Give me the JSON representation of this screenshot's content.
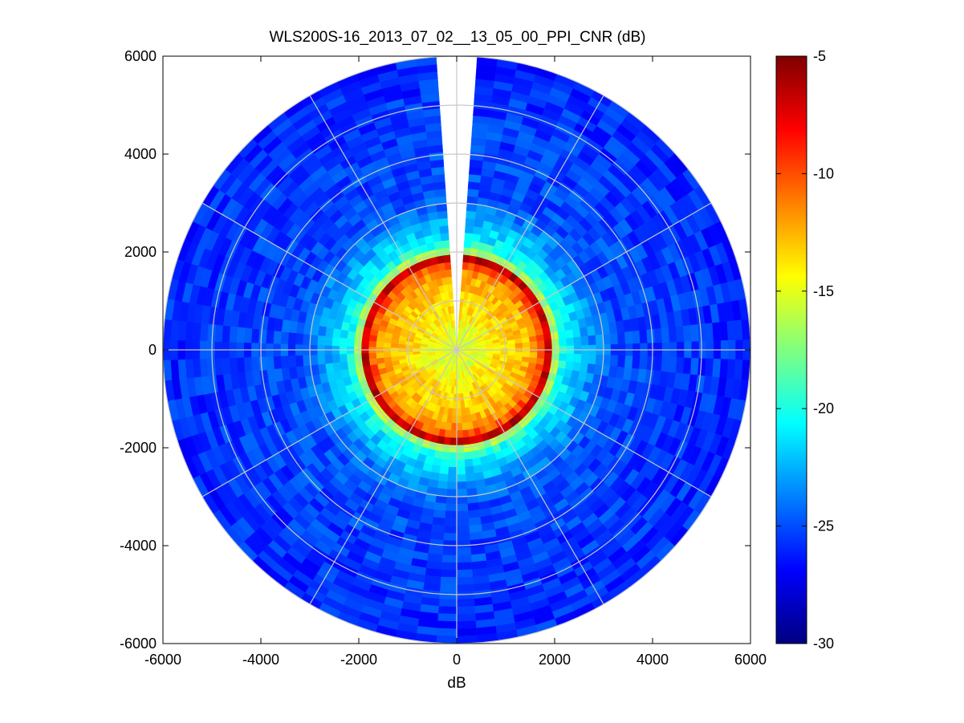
{
  "chart_data": {
    "type": "heatmap",
    "title": "WLS200S-16_2013_07_02__13_05_00_PPI_CNR (dB)",
    "xlabel": "dB",
    "ylabel": "",
    "xlim": [
      -6000,
      6000
    ],
    "ylim": [
      -6000,
      6000
    ],
    "xticks": [
      -6000,
      -4000,
      -2000,
      0,
      2000,
      4000,
      6000
    ],
    "yticks": [
      -6000,
      -4000,
      -2000,
      0,
      2000,
      4000,
      6000
    ],
    "xtick_labels": [
      "-6000",
      "-4000",
      "-2000",
      "0",
      "2000",
      "4000",
      "6000"
    ],
    "ytick_labels": [
      "-6000",
      "-4000",
      "-2000",
      "0",
      "2000",
      "4000",
      "6000"
    ],
    "colorbar": {
      "colormap": "jet",
      "min": -30,
      "max": -5,
      "ticks": [
        -30,
        -25,
        -20,
        -15,
        -10,
        -5
      ],
      "tick_labels": [
        "-30",
        "-25",
        "-20",
        "-15",
        "-10",
        "-5"
      ]
    },
    "polar_grid": {
      "ring_radii": [
        1000,
        2000,
        3000,
        4000,
        5000,
        6000
      ],
      "spoke_angles_deg": [
        0,
        30,
        60,
        90,
        120,
        150,
        180,
        210,
        240,
        270,
        300,
        330
      ]
    },
    "scan": {
      "max_range": 6000,
      "missing_sector_deg": [
        355,
        5
      ],
      "radial_profile": [
        {
          "range": 0,
          "cnr": -15.5
        },
        {
          "range": 400,
          "cnr": -15
        },
        {
          "range": 900,
          "cnr": -13.5
        },
        {
          "range": 1500,
          "cnr": -12.5
        },
        {
          "range": 1750,
          "cnr": -10
        },
        {
          "range": 1900,
          "cnr": -6
        },
        {
          "range": 2050,
          "cnr": -19
        },
        {
          "range": 2300,
          "cnr": -21
        },
        {
          "range": 2700,
          "cnr": -23
        },
        {
          "range": 3200,
          "cnr": -25
        },
        {
          "range": 6000,
          "cnr": -26
        }
      ]
    }
  },
  "colors": {
    "background": "#ffffff",
    "grid": "#c8c8c8",
    "axes": "#000000"
  }
}
